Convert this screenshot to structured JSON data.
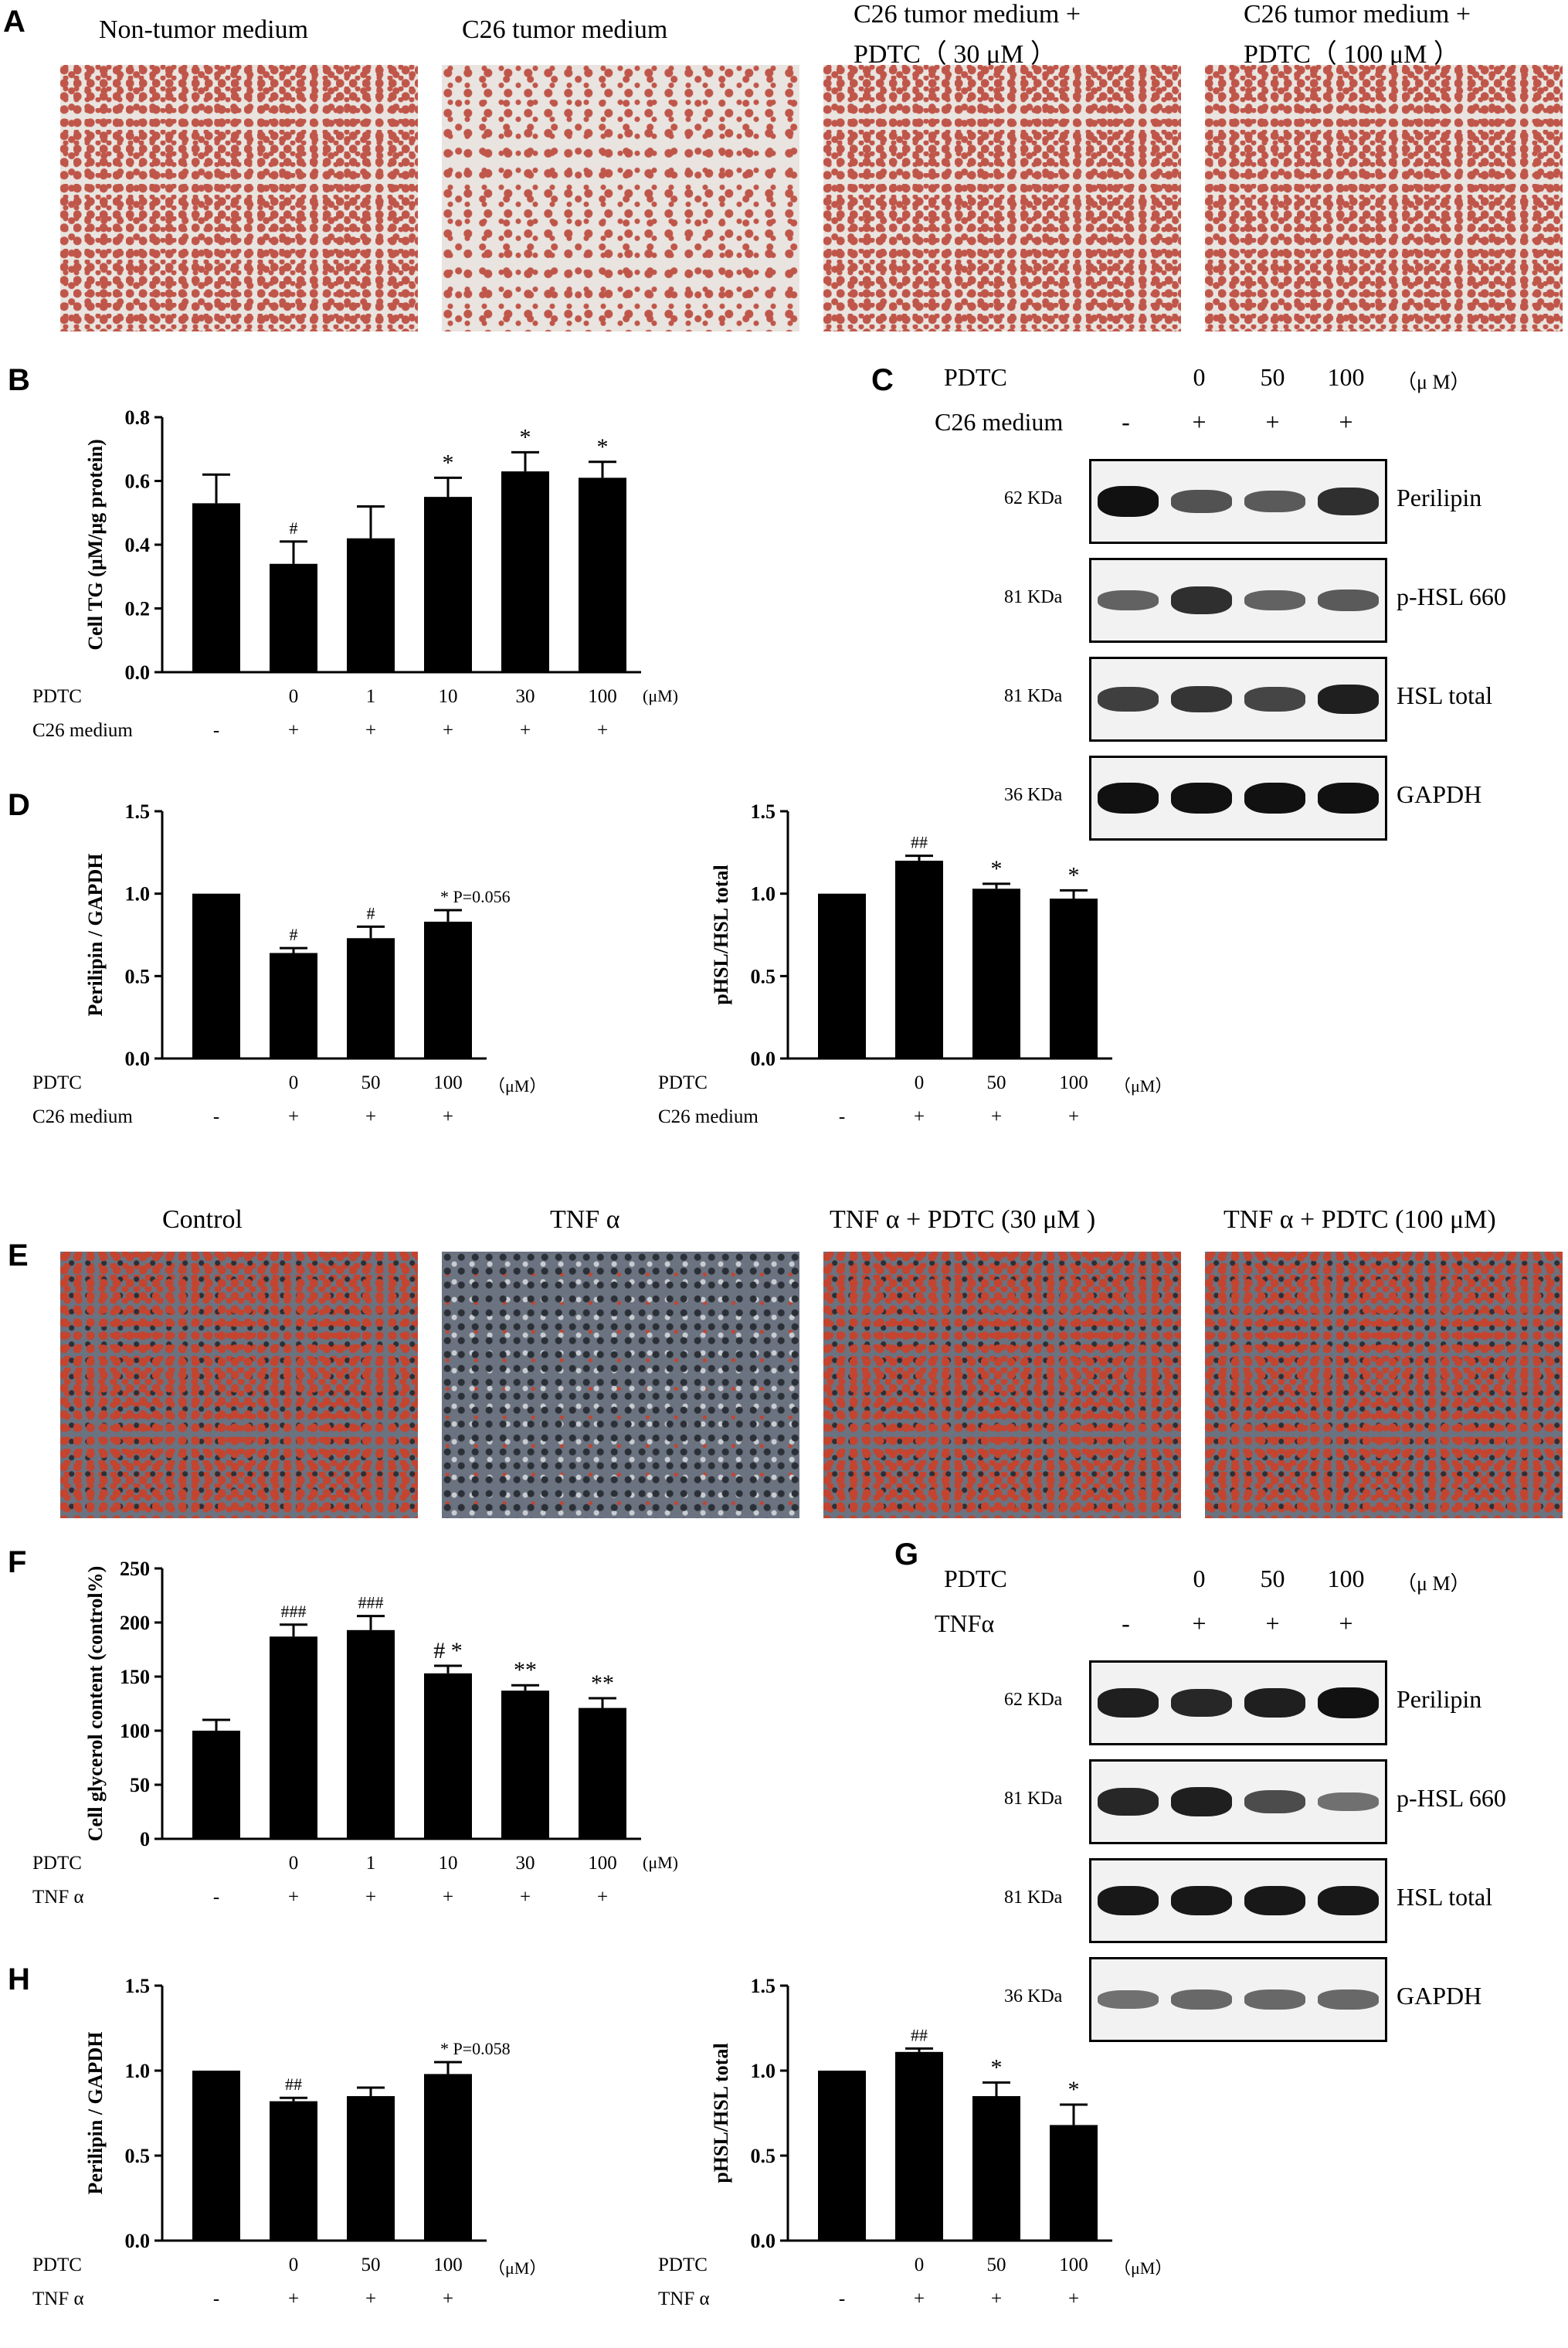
{
  "panels": {
    "a": "A",
    "b": "B",
    "c": "C",
    "d": "D",
    "e": "E",
    "f": "F",
    "g": "G",
    "h": "H"
  },
  "panelA": {
    "captions": [
      "Non-tumor medium",
      "C26 tumor medium",
      "C26 tumor medium +",
      "PDTC（ 30 μM ）",
      "C26 tumor medium +",
      "PDTC（ 100 μM ）"
    ],
    "stain_color": "#c0564a",
    "background_color": "#e9e4df"
  },
  "panelE": {
    "captions": [
      "Control",
      "TNF α",
      "TNF α + PDTC (30 μM )",
      "TNF α + PDTC (100 μM)"
    ],
    "stain_color": "#c4442f",
    "background_color": "#6b7280"
  },
  "chart_data": [
    {
      "id": "B",
      "type": "bar",
      "ylabel": "Cell TG (μM/μg protein)",
      "ylim": [
        0,
        0.8
      ],
      "yticks": [
        "0.0",
        "0.2",
        "0.4",
        "0.6",
        "0.8"
      ],
      "categories": [
        "-/-",
        "0/+",
        "1/+",
        "10/+",
        "30/+",
        "100/+"
      ],
      "values": [
        0.53,
        0.34,
        0.42,
        0.55,
        0.63,
        0.61
      ],
      "errors": [
        0.09,
        0.07,
        0.1,
        0.06,
        0.06,
        0.05
      ],
      "annotations": [
        "",
        "#",
        "",
        "*",
        "*",
        "*"
      ],
      "rows": [
        {
          "label": "PDTC",
          "values": [
            "",
            "0",
            "1",
            "10",
            "30",
            "100"
          ],
          "unit": "(μM)"
        },
        {
          "label": "C26 medium",
          "values": [
            "-",
            "+",
            "+",
            "+",
            "+",
            "+"
          ]
        }
      ]
    },
    {
      "id": "D-left",
      "type": "bar",
      "ylabel": "Perilipin / GAPDH",
      "ylim": [
        0,
        1.5
      ],
      "yticks": [
        "0.0",
        "0.5",
        "1.0",
        "1.5"
      ],
      "categories": [
        "-/-",
        "0/+",
        "50/+",
        "100/+"
      ],
      "values": [
        1.0,
        0.64,
        0.73,
        0.83
      ],
      "errors": [
        0,
        0.03,
        0.07,
        0.07
      ],
      "annotations": [
        "",
        "#",
        "#",
        "* P=0.056"
      ],
      "rows": [
        {
          "label": "PDTC",
          "values": [
            "",
            "0",
            "50",
            "100"
          ],
          "unit": "（μM）"
        },
        {
          "label": "C26 medium",
          "values": [
            "-",
            "+",
            "+",
            "+"
          ]
        }
      ]
    },
    {
      "id": "D-right",
      "type": "bar",
      "ylabel": "pHSL/HSL total",
      "ylim": [
        0,
        1.5
      ],
      "yticks": [
        "0.0",
        "0.5",
        "1.0",
        "1.5"
      ],
      "categories": [
        "-/-",
        "0/+",
        "50/+",
        "100/+"
      ],
      "values": [
        1.0,
        1.2,
        1.03,
        0.97
      ],
      "errors": [
        0,
        0.03,
        0.03,
        0.05
      ],
      "annotations": [
        "",
        "##",
        "*",
        "*"
      ],
      "rows": [
        {
          "label": "PDTC",
          "values": [
            "",
            "0",
            "50",
            "100"
          ],
          "unit": "（μM）"
        },
        {
          "label": "C26 medium",
          "values": [
            "-",
            "+",
            "+",
            "+"
          ]
        }
      ]
    },
    {
      "id": "F",
      "type": "bar",
      "ylabel": "Cell glycerol content (control%)",
      "ylim": [
        0,
        250
      ],
      "yticks": [
        "0",
        "50",
        "100",
        "150",
        "200",
        "250"
      ],
      "categories": [
        "-/-",
        "0/+",
        "1/+",
        "10/+",
        "30/+",
        "100/+"
      ],
      "values": [
        100,
        187,
        193,
        153,
        137,
        121
      ],
      "errors": [
        10,
        11,
        13,
        7,
        5,
        9
      ],
      "annotations": [
        "",
        "###",
        "###",
        "# *",
        "**",
        "**"
      ],
      "rows": [
        {
          "label": "PDTC",
          "values": [
            "",
            "0",
            "1",
            "10",
            "30",
            "100"
          ],
          "unit": "(μM)"
        },
        {
          "label": "TNF α",
          "values": [
            "-",
            "+",
            "+",
            "+",
            "+",
            "+"
          ]
        }
      ]
    },
    {
      "id": "H-left",
      "type": "bar",
      "ylabel": "Perilipin / GAPDH",
      "ylim": [
        0,
        1.5
      ],
      "yticks": [
        "0.0",
        "0.5",
        "1.0",
        "1.5"
      ],
      "categories": [
        "-/-",
        "0/+",
        "50/+",
        "100/+"
      ],
      "values": [
        1.0,
        0.82,
        0.85,
        0.98
      ],
      "errors": [
        0,
        0.02,
        0.05,
        0.07
      ],
      "annotations": [
        "",
        "##",
        "",
        "* P=0.058"
      ],
      "rows": [
        {
          "label": "PDTC",
          "values": [
            "",
            "0",
            "50",
            "100"
          ],
          "unit": "（μM）"
        },
        {
          "label": "TNF α",
          "values": [
            "-",
            "+",
            "+",
            "+"
          ]
        }
      ]
    },
    {
      "id": "H-right",
      "type": "bar",
      "ylabel": "pHSL/HSL total",
      "ylim": [
        0,
        1.5
      ],
      "yticks": [
        "0.0",
        "0.5",
        "1.0",
        "1.5"
      ],
      "categories": [
        "-/-",
        "0/+",
        "50/+",
        "100/+"
      ],
      "values": [
        1.0,
        1.11,
        0.85,
        0.68
      ],
      "errors": [
        0,
        0.02,
        0.08,
        0.12
      ],
      "annotations": [
        "",
        "##",
        "*",
        "*"
      ],
      "rows": [
        {
          "label": "PDTC",
          "values": [
            "",
            "0",
            "50",
            "100"
          ],
          "unit": "（μM）"
        },
        {
          "label": "TNF α",
          "values": [
            "-",
            "+",
            "+",
            "+"
          ]
        }
      ]
    }
  ],
  "blots": [
    {
      "id": "C",
      "header_rows": [
        {
          "label": "PDTC",
          "values": [
            "0",
            "50",
            "100"
          ],
          "unit": "（μ M）"
        },
        {
          "label": "C26 medium",
          "values": [
            "-",
            "+",
            "+",
            "+"
          ]
        }
      ],
      "rows": [
        {
          "kda": "62 KDa",
          "protein": "Perilipin",
          "intensity": [
            1.0,
            0.55,
            0.5,
            0.8
          ]
        },
        {
          "kda": "81 KDa",
          "protein": "p-HSL 660",
          "intensity": [
            0.45,
            0.8,
            0.45,
            0.5
          ]
        },
        {
          "kda": "81 KDa",
          "protein": "HSL total",
          "intensity": [
            0.7,
            0.75,
            0.65,
            0.9
          ]
        },
        {
          "kda": "36 KDa",
          "protein": "GAPDH",
          "intensity": [
            1.0,
            1.0,
            1.0,
            1.0
          ]
        }
      ]
    },
    {
      "id": "G",
      "header_rows": [
        {
          "label": "PDTC",
          "values": [
            "0",
            "50",
            "100"
          ],
          "unit": "（μ M）"
        },
        {
          "label": "TNFα",
          "values": [
            "-",
            "+",
            "+",
            "+"
          ]
        }
      ],
      "rows": [
        {
          "kda": "62 KDa",
          "protein": "Perilipin",
          "intensity": [
            0.9,
            0.85,
            0.9,
            1.0
          ]
        },
        {
          "kda": "81 KDa",
          "protein": "p-HSL 660",
          "intensity": [
            0.85,
            0.9,
            0.6,
            0.35
          ]
        },
        {
          "kda": "81 KDa",
          "protein": "HSL total",
          "intensity": [
            0.95,
            0.95,
            0.95,
            0.95
          ]
        },
        {
          "kda": "36 KDa",
          "protein": "GAPDH",
          "intensity": [
            0.35,
            0.4,
            0.4,
            0.4
          ]
        }
      ]
    }
  ]
}
